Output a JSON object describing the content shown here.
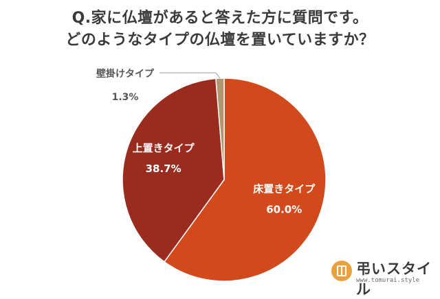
{
  "title_lines": [
    "Q.家に仏壇があると答えた方に質問です。",
    "どのようなタイプの仏壇を置いていますか？"
  ],
  "chart_data": {
    "type": "pie",
    "title": "Q.家に仏壇があると答えた方に質問です。どのようなタイプの仏壇を置いていますか？",
    "slices": [
      {
        "label": "床置きタイプ",
        "value": 60.0,
        "display": "60.0%",
        "color": "#d24a1c"
      },
      {
        "label": "上置きタイプ",
        "value": 38.7,
        "display": "38.7%",
        "color": "#9a2c1f"
      },
      {
        "label": "壁掛けタイプ",
        "value": 1.3,
        "display": "1.3%",
        "color": "#b49571"
      }
    ],
    "legend": false
  },
  "logo": {
    "name": "弔いスタイル",
    "url": "www.tomurai.style"
  }
}
